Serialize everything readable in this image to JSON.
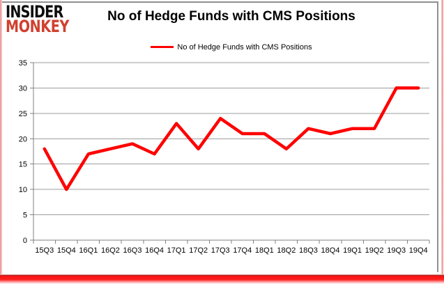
{
  "logo": {
    "line1": "INSIDER",
    "line2": "MONKEY"
  },
  "header": {
    "title": "No of Hedge Funds with CMS Positions"
  },
  "legend": {
    "label": "No of Hedge Funds with CMS Positions"
  },
  "colors": {
    "series_red": "#ff0000",
    "logo_red": "#d1402f",
    "gridline_gray": "#9d9d9d",
    "axis_gray": "#808080",
    "label_black": "#000000"
  },
  "chart_data": {
    "type": "line",
    "title": "No of Hedge Funds with CMS Positions",
    "categories": [
      "15Q3",
      "15Q4",
      "16Q1",
      "16Q2",
      "16Q3",
      "16Q4",
      "17Q1",
      "17Q2",
      "17Q3",
      "17Q4",
      "18Q1",
      "18Q2",
      "18Q3",
      "18Q4",
      "19Q1",
      "19Q2",
      "19Q3",
      "19Q4"
    ],
    "series": [
      {
        "name": "No of Hedge Funds with CMS Positions",
        "color": "#ff0000",
        "values": [
          18,
          10,
          17,
          18,
          19,
          17,
          23,
          18,
          24,
          21,
          21,
          18,
          22,
          21,
          22,
          22,
          30,
          30
        ]
      }
    ],
    "xlabel": "",
    "ylabel": "",
    "ylim": [
      0,
      35
    ],
    "ytick_step": 5,
    "grid": "horizontal",
    "legend_position": "top-center"
  }
}
